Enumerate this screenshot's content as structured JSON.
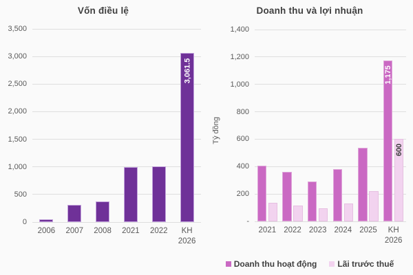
{
  "chart_data": [
    {
      "type": "bar",
      "title": "Vốn điều lệ",
      "ylabel": "",
      "categories": [
        "2006",
        "2007",
        "2008",
        "2021",
        "2022",
        "KH 2026"
      ],
      "series": [
        {
          "name": "Vốn điều lệ",
          "color": "#6F3198",
          "border": "#C3A4DC",
          "values": [
            50,
            315,
            375,
            1000,
            1010,
            3061.5
          ]
        }
      ],
      "ylim": [
        0,
        3500
      ],
      "ytick_labels": [
        "0",
        "500",
        "1,000",
        "1,500",
        "2,000",
        "2,500",
        "3,000",
        "3,500"
      ],
      "grid": true,
      "legend": false,
      "bar_labels": [
        {
          "series": 0,
          "index": 5,
          "text": "3,061.5",
          "color": "#ffffff"
        }
      ]
    },
    {
      "type": "bar",
      "title": "Doanh thu và lợi nhuận",
      "ylabel": "Tỷ đồng",
      "categories": [
        "2021",
        "2022",
        "2023",
        "2024",
        "2025",
        "KH 2026"
      ],
      "series": [
        {
          "name": "Doanh thu hoạt động",
          "color": "#CA69C3",
          "border": "#DFA6D9",
          "values": [
            405,
            360,
            290,
            380,
            535,
            1175
          ]
        },
        {
          "name": "Lãi trước thuế",
          "color": "#F2D3EF",
          "border": "#E6BFE1",
          "values": [
            135,
            115,
            95,
            130,
            220,
            600
          ]
        }
      ],
      "ylim": [
        0,
        1400
      ],
      "ytick_labels": [
        "-",
        "200",
        "400",
        "600",
        "800",
        "1,000",
        "1,200",
        "1,400"
      ],
      "grid": true,
      "legend": true,
      "bar_labels": [
        {
          "series": 0,
          "index": 5,
          "text": "1,175",
          "color": "#ffffff"
        },
        {
          "series": 1,
          "index": 5,
          "text": "600",
          "color": "#3c3c3c"
        }
      ]
    }
  ]
}
